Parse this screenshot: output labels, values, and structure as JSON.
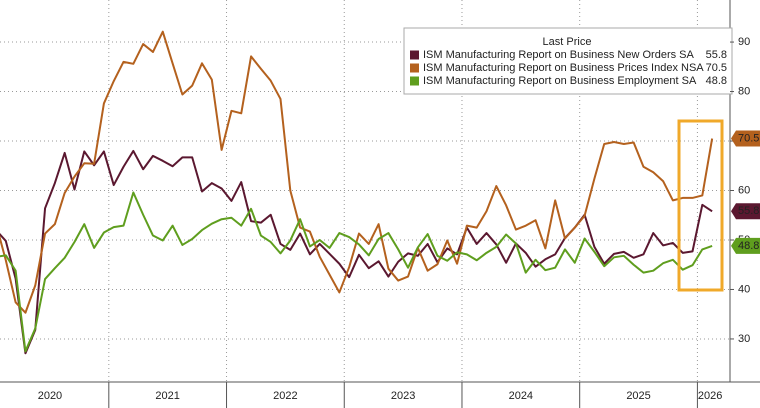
{
  "chart_data": {
    "type": "line",
    "legend_title": "Last Price",
    "categories": [
      null,
      null,
      null,
      null,
      null,
      "2020",
      null,
      null,
      null,
      null,
      null,
      null,
      null,
      null,
      null,
      null,
      null,
      "2021",
      null,
      null,
      null,
      null,
      null,
      null,
      null,
      null,
      null,
      null,
      null,
      "2022",
      null,
      null,
      null,
      null,
      null,
      null,
      null,
      null,
      null,
      null,
      null,
      "2023",
      null,
      null,
      null,
      null,
      null,
      null,
      null,
      null,
      null,
      null,
      null,
      "2024",
      null,
      null,
      null,
      null,
      null,
      null,
      null,
      null,
      null,
      null,
      null,
      "2025",
      null,
      null,
      null,
      null,
      null,
      null,
      null,
      "2026"
    ],
    "ylim": [
      21.3,
      98.5
    ],
    "yticks": [
      30,
      40,
      50,
      60,
      70,
      80,
      90
    ],
    "grid": true,
    "series": [
      {
        "name": "ISM Manufacturing Report on Business New Orders SA",
        "color": "#5b1830",
        "values": [
          52.0,
          49.8,
          42.2,
          27.1,
          31.8,
          56.4,
          61.5,
          67.6,
          60.2,
          67.9,
          65.1,
          67.9,
          61.1,
          64.8,
          68.0,
          64.3,
          67.0,
          66.0,
          64.9,
          66.7,
          66.7,
          59.8,
          61.5,
          60.4,
          57.9,
          61.7,
          53.8,
          53.5,
          55.1,
          49.2,
          48.0,
          51.3,
          47.1,
          49.2,
          47.2,
          45.2,
          42.5,
          47.0,
          44.3,
          45.7,
          42.6,
          45.6,
          47.3,
          46.8,
          49.2,
          45.5,
          48.3,
          47.1,
          52.5,
          49.2,
          51.4,
          49.1,
          45.4,
          49.3,
          47.4,
          44.6,
          46.1,
          47.1,
          50.4,
          52.5,
          55.1,
          48.6,
          45.2,
          47.2,
          47.6,
          46.4,
          47.1,
          51.4,
          48.9,
          49.4,
          47.4,
          47.7,
          57.1,
          55.8
        ]
      },
      {
        "name": "ISM Manufacturing Report on Business Prices Index NSA",
        "color": "#b4611e",
        "values": [
          53.3,
          45.9,
          37.4,
          35.3,
          40.8,
          51.3,
          53.2,
          59.5,
          62.8,
          65.5,
          65.4,
          77.6,
          82.1,
          86.0,
          85.6,
          89.6,
          88.0,
          92.1,
          85.7,
          79.4,
          81.2,
          85.7,
          82.4,
          68.2,
          76.1,
          75.6,
          87.1,
          84.6,
          82.2,
          78.5,
          60.0,
          52.5,
          51.7,
          46.6,
          43.0,
          39.4,
          44.5,
          51.3,
          49.2,
          53.2,
          44.2,
          41.8,
          42.6,
          48.4,
          43.8,
          45.1,
          49.9,
          45.2,
          52.9,
          52.5,
          55.8,
          60.9,
          57.0,
          52.1,
          52.9,
          54.0,
          48.3,
          58.0,
          50.3,
          52.5,
          54.9,
          62.4,
          69.4,
          69.8,
          69.4,
          69.7,
          64.8,
          63.7,
          61.9,
          58.0,
          58.5,
          58.5,
          59.0,
          70.5
        ]
      },
      {
        "name": "ISM Manufacturing Report on Business Employment SA",
        "color": "#5f9e1e",
        "values": [
          46.6,
          46.9,
          43.8,
          27.5,
          32.1,
          42.1,
          44.3,
          46.4,
          49.6,
          53.2,
          48.4,
          51.5,
          52.6,
          52.9,
          59.6,
          55.1,
          50.9,
          49.9,
          52.9,
          49.0,
          50.2,
          52.0,
          53.3,
          54.2,
          54.5,
          52.9,
          56.3,
          50.9,
          49.6,
          47.3,
          49.9,
          54.2,
          48.7,
          50.0,
          48.4,
          51.4,
          50.6,
          49.1,
          46.9,
          50.2,
          51.4,
          48.1,
          44.4,
          48.5,
          51.2,
          46.8,
          45.8,
          47.5,
          47.1,
          45.9,
          47.4,
          48.6,
          51.1,
          49.3,
          43.4,
          46.0,
          43.9,
          44.4,
          48.1,
          45.4,
          50.3,
          47.6,
          44.7,
          46.5,
          46.8,
          45.0,
          43.4,
          43.8,
          45.3,
          46.0,
          44.0,
          44.9,
          48.1,
          48.8
        ]
      }
    ]
  }
}
